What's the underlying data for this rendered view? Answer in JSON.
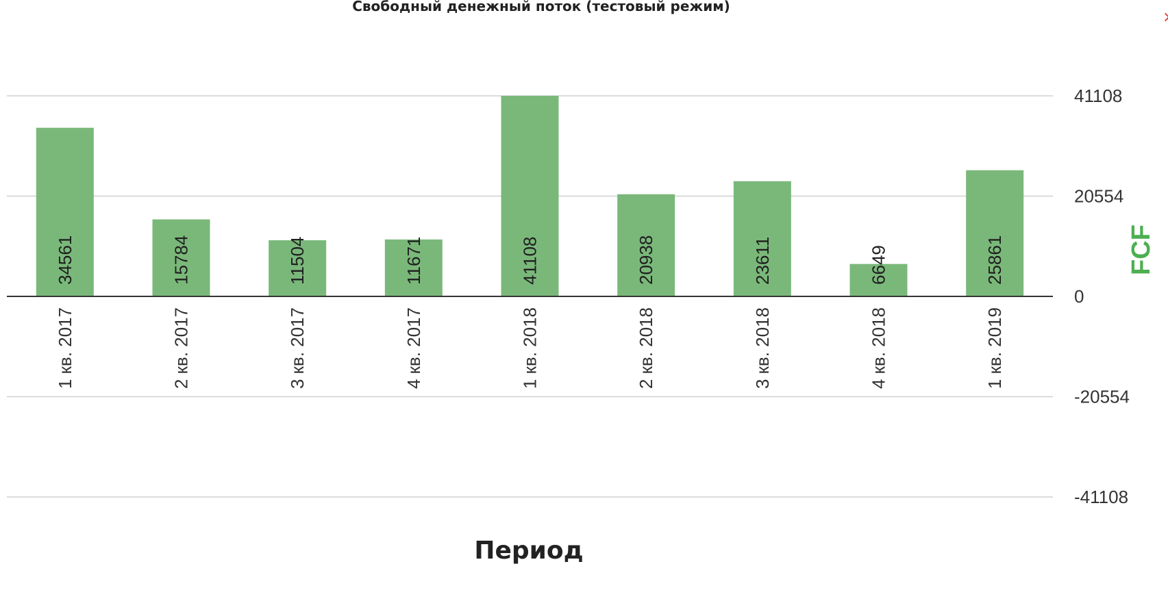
{
  "chart_data": {
    "type": "bar",
    "title": "Свободный денежный поток (тестовый режим)",
    "xlabel": "Период",
    "ylabel": "FCF",
    "categories": [
      "1 кв. 2017",
      "2 кв. 2017",
      "3 кв. 2017",
      "4 кв. 2017",
      "1 кв. 2018",
      "2 кв. 2018",
      "3 кв. 2018",
      "4 кв. 2018",
      "1 кв. 2019"
    ],
    "values": [
      34561,
      15784,
      11504,
      11671,
      41108,
      20938,
      23611,
      6649,
      25861
    ],
    "y_ticks": [
      41108,
      20554,
      0,
      -20554,
      -41108
    ],
    "ylim": [
      -41108,
      41108
    ],
    "grid": true,
    "y_axis_side": "right"
  },
  "colors": {
    "bar": "#7ab87a",
    "axis_title": "#4caf50",
    "close_icon": "#e53935",
    "grid": "#d0d0d0",
    "zero_line": "#333333"
  },
  "icons": {
    "close": "close-icon"
  },
  "close_glyph": "×"
}
